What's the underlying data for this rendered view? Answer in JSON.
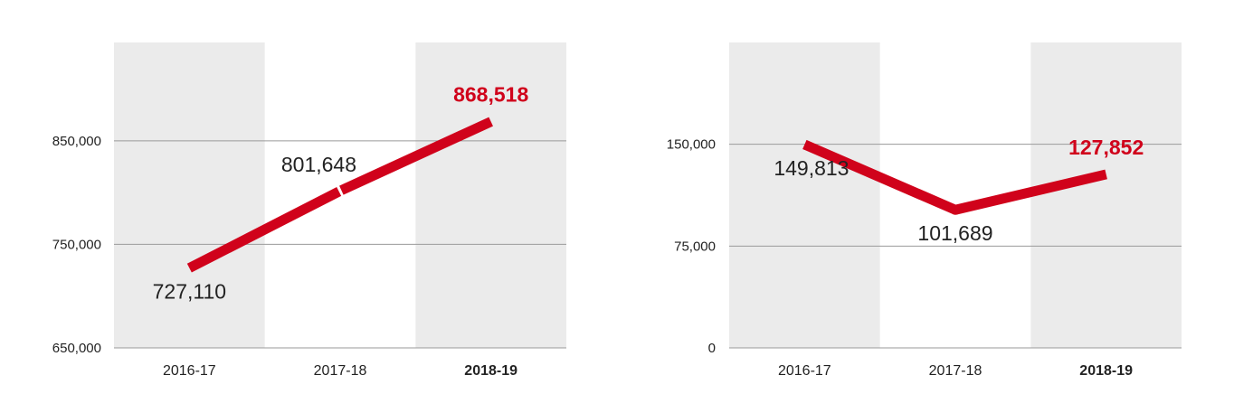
{
  "colors": {
    "line": "#d0021b",
    "highlight_text": "#d0021b",
    "band": "#ebebeb",
    "grid": "#9a9a9a",
    "text": "#222222"
  },
  "chart_data": [
    {
      "type": "line",
      "categories": [
        "2016-17",
        "2017-18",
        "2018-19"
      ],
      "highlight_category": "2018-19",
      "values": [
        727110,
        801648,
        868518
      ],
      "value_labels": [
        "727,110",
        "801,648",
        "868,518"
      ],
      "yticks": [
        650000,
        750000,
        850000
      ],
      "ytick_labels": [
        "650,000",
        "750,000",
        "850,000"
      ],
      "ylim": [
        650000,
        945000
      ],
      "grid": true
    },
    {
      "type": "line",
      "categories": [
        "2016-17",
        "2017-18",
        "2018-19"
      ],
      "highlight_category": "2018-19",
      "values": [
        149813,
        101689,
        127852
      ],
      "value_labels": [
        "149,813",
        "101,689",
        "127,852"
      ],
      "yticks": [
        0,
        75000,
        150000
      ],
      "ytick_labels": [
        "0",
        "75,000",
        "150,000"
      ],
      "ylim": [
        0,
        225000
      ],
      "grid": true
    }
  ]
}
